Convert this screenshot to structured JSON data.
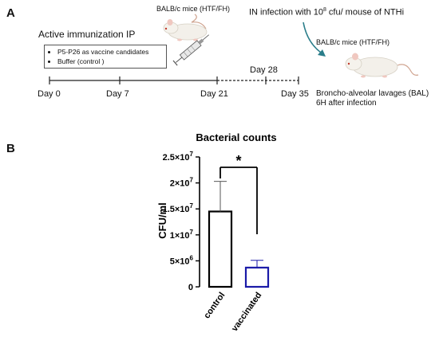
{
  "panels": {
    "a_letter": "A",
    "b_letter": "B"
  },
  "timeline": {
    "heading": "Active immunization IP",
    "candidates_box": [
      "P5-P26 as vaccine candidates",
      "Buffer (control )"
    ],
    "days": [
      "Day 0",
      "Day 7",
      "Day 21",
      "Day 28",
      "Day 35"
    ],
    "mice_label_1": "BALB/c mice (HTF/FH)",
    "mice_label_2": "BALB/c mice (HTF/FH)",
    "infection_prefix": "IN infection with 10",
    "infection_exp": "8",
    "infection_suffix": " cfu/ mouse of NTHi",
    "bal_line1": "Broncho-alveolar lavages (BAL)",
    "bal_line2": "6H after infection"
  },
  "chart_data": {
    "type": "bar",
    "title": "Bacterial counts",
    "ylabel": "CFU/ml",
    "xlabel": "",
    "categories": [
      "control",
      "vaccinated"
    ],
    "values": [
      14500000,
      3700000
    ],
    "errors": [
      5800000,
      1400000
    ],
    "ylim": [
      0,
      25000000
    ],
    "yticks": [
      {
        "value": 0,
        "mantissa": "0",
        "exp": ""
      },
      {
        "value": 5000000,
        "mantissa": "5×10",
        "exp": "6"
      },
      {
        "value": 10000000,
        "mantissa": "1×10",
        "exp": "7"
      },
      {
        "value": 15000000,
        "mantissa": "1.5×10",
        "exp": "7"
      },
      {
        "value": 20000000,
        "mantissa": "2×10",
        "exp": "7"
      },
      {
        "value": 25000000,
        "mantissa": "2.5×10",
        "exp": "7"
      }
    ],
    "bar_colors": [
      "#000000",
      "#1a1aa8"
    ],
    "significance": "*",
    "grid": false,
    "legend": "none"
  }
}
